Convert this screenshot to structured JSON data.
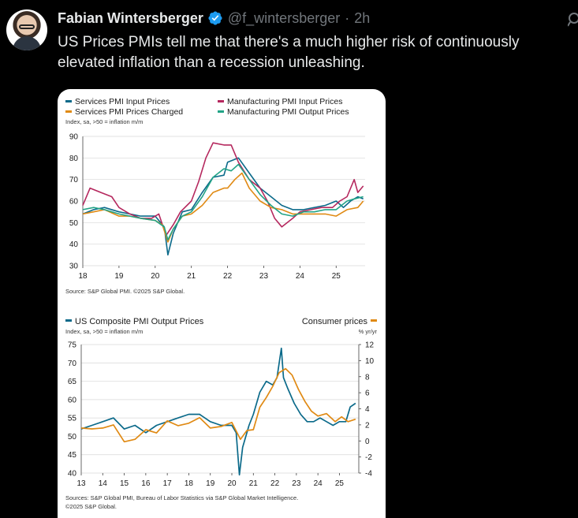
{
  "tweet": {
    "author_name": "Fabian Wintersberger",
    "verified_icon": "verified-badge-icon",
    "handle": "@f_wintersberger",
    "separator": "·",
    "time": "2h",
    "text": "US Prices PMIs tell me that there's a much higher risk of continuously elevated inflation than a recession unleashing.",
    "more_icon": "more-options-icon"
  },
  "colors": {
    "services_input": "#0b6a8a",
    "manufacturing_input": "#b5285e",
    "services_charged": "#e08a14",
    "manufacturing_output": "#22a386",
    "composite": "#0b6a8a",
    "consumer": "#e08a14",
    "verified": "#1d9bf0"
  },
  "chart_data": [
    {
      "type": "line",
      "legend": [
        "Services PMI Input Prices",
        "Manufacturing PMI Input Prices",
        "Services PMI Prices Charged",
        "Manufacturing PMI Output Prices"
      ],
      "subtitle": "Index, sa, >50 = inflation m/m",
      "ylim": [
        30,
        90
      ],
      "y_ticks": [
        "90",
        "80",
        "70",
        "60",
        "50",
        "40",
        "30"
      ],
      "x_ticks": [
        "18",
        "19",
        "20",
        "21",
        "22",
        "23",
        "24",
        "25"
      ],
      "xlim": [
        2018.0,
        2025.8
      ],
      "source": "Source: S&P Global PMI. ©2025 S&P Global.",
      "series": [
        {
          "name": "Services PMI Input Prices",
          "x": [
            2018.0,
            2018.3,
            2018.6,
            2019.0,
            2019.3,
            2019.6,
            2020.0,
            2020.25,
            2020.35,
            2020.5,
            2020.75,
            2021.0,
            2021.3,
            2021.6,
            2021.9,
            2022.0,
            2022.3,
            2022.6,
            2022.9,
            2023.2,
            2023.5,
            2023.8,
            2024.1,
            2024.4,
            2024.7,
            2025.0,
            2025.2,
            2025.4,
            2025.6,
            2025.75
          ],
          "values": [
            54,
            56,
            57,
            55,
            54,
            53,
            53,
            48,
            35,
            45,
            55,
            56,
            64,
            71,
            72,
            78,
            80,
            73,
            66,
            62,
            58,
            56,
            56,
            57,
            58,
            60,
            57,
            60,
            62,
            61
          ]
        },
        {
          "name": "Manufacturing PMI Input Prices",
          "x": [
            2018.0,
            2018.2,
            2018.5,
            2018.8,
            2019.0,
            2019.3,
            2019.6,
            2019.9,
            2020.1,
            2020.3,
            2020.5,
            2020.7,
            2021.0,
            2021.2,
            2021.4,
            2021.6,
            2021.9,
            2022.1,
            2022.3,
            2022.6,
            2022.9,
            2023.1,
            2023.3,
            2023.5,
            2023.8,
            2024.0,
            2024.3,
            2024.6,
            2024.9,
            2025.1,
            2025.3,
            2025.5,
            2025.6,
            2025.75
          ],
          "values": [
            58,
            66,
            64,
            62,
            57,
            54,
            52,
            52,
            54,
            44,
            49,
            55,
            60,
            69,
            80,
            87,
            86,
            86,
            78,
            70,
            66,
            60,
            52,
            48,
            52,
            55,
            56,
            57,
            57,
            60,
            62,
            70,
            64,
            67
          ]
        },
        {
          "name": "Services PMI Prices Charged",
          "x": [
            2018.0,
            2018.3,
            2018.6,
            2019.0,
            2019.3,
            2019.6,
            2020.0,
            2020.2,
            2020.35,
            2020.5,
            2020.75,
            2021.0,
            2021.3,
            2021.6,
            2021.9,
            2022.0,
            2022.2,
            2022.4,
            2022.6,
            2022.9,
            2023.2,
            2023.5,
            2023.8,
            2024.1,
            2024.4,
            2024.7,
            2025.0,
            2025.3,
            2025.6,
            2025.75
          ],
          "values": [
            54,
            55,
            56,
            53,
            53,
            52,
            51,
            49,
            41,
            47,
            53,
            54,
            58,
            64,
            66,
            66,
            70,
            73,
            66,
            60,
            57,
            56,
            54,
            54,
            54,
            54,
            53,
            56,
            57,
            60
          ]
        },
        {
          "name": "Manufacturing PMI Output Prices",
          "x": [
            2018.0,
            2018.3,
            2018.6,
            2019.0,
            2019.3,
            2019.6,
            2020.0,
            2020.25,
            2020.35,
            2020.5,
            2020.75,
            2021.0,
            2021.3,
            2021.6,
            2021.9,
            2022.1,
            2022.3,
            2022.6,
            2022.9,
            2023.2,
            2023.5,
            2023.8,
            2024.1,
            2024.4,
            2024.7,
            2025.0,
            2025.3,
            2025.5,
            2025.75
          ],
          "values": [
            56,
            57,
            56,
            54,
            53,
            52,
            51,
            48,
            42,
            47,
            53,
            55,
            62,
            71,
            75,
            74,
            77,
            70,
            63,
            58,
            54,
            53,
            55,
            55,
            56,
            56,
            60,
            61,
            62
          ]
        }
      ]
    },
    {
      "type": "line",
      "legend_left": "US Composite PMI Output Prices",
      "legend_right": "Consumer prices",
      "subtitle_left": "Index, sa, >50 = inflation m/m",
      "subtitle_right": "% yr/yr",
      "ylim_left": [
        40,
        75
      ],
      "ylim_right": [
        -4,
        12
      ],
      "y_ticks_left": [
        "75",
        "70",
        "65",
        "60",
        "55",
        "50",
        "45",
        "40"
      ],
      "y_ticks_right": [
        "12",
        "10",
        "8",
        "6",
        "4",
        "2",
        "0",
        "-2",
        "-4"
      ],
      "x_ticks": [
        "13",
        "14",
        "15",
        "16",
        "17",
        "18",
        "19",
        "20",
        "21",
        "22",
        "23",
        "24",
        "25"
      ],
      "xlim": [
        2013.0,
        2025.9
      ],
      "source_line1": "Sources: S&P Global PMI, Bureau of Labor Statistics via S&P Global Market Intelligence.",
      "source_line2": "©2025 S&P Global.",
      "series": [
        {
          "name": "US Composite PMI Output Prices",
          "axis": "left",
          "x": [
            2013.0,
            2013.5,
            2014.0,
            2014.5,
            2015.0,
            2015.5,
            2016.0,
            2016.5,
            2017.0,
            2017.5,
            2018.0,
            2018.5,
            2019.0,
            2019.5,
            2020.0,
            2020.2,
            2020.35,
            2020.5,
            2020.8,
            2021.0,
            2021.3,
            2021.6,
            2021.9,
            2022.1,
            2022.3,
            2022.4,
            2022.6,
            2022.9,
            2023.2,
            2023.5,
            2023.8,
            2024.1,
            2024.4,
            2024.7,
            2025.0,
            2025.3,
            2025.5,
            2025.75
          ],
          "values": [
            52,
            53,
            54,
            55,
            52,
            53,
            51,
            53,
            54,
            55,
            56,
            56,
            54,
            53,
            53,
            51,
            39.5,
            47,
            53,
            56,
            62,
            65,
            64,
            66,
            74,
            66,
            63,
            59,
            56,
            54,
            54,
            55,
            54,
            53,
            54,
            54,
            58,
            59
          ]
        },
        {
          "name": "Consumer prices",
          "axis": "right",
          "x": [
            2013.0,
            2013.5,
            2014.0,
            2014.5,
            2015.0,
            2015.5,
            2016.0,
            2016.5,
            2017.0,
            2017.5,
            2018.0,
            2018.5,
            2019.0,
            2019.5,
            2020.0,
            2020.4,
            2020.7,
            2021.0,
            2021.3,
            2021.6,
            2021.9,
            2022.2,
            2022.5,
            2022.8,
            2023.1,
            2023.4,
            2023.7,
            2024.0,
            2024.4,
            2024.8,
            2025.1,
            2025.4,
            2025.75
          ],
          "values": [
            1.6,
            1.5,
            1.6,
            2.0,
            -0.1,
            0.2,
            1.4,
            1.0,
            2.5,
            1.9,
            2.2,
            2.9,
            1.6,
            1.8,
            2.3,
            0.2,
            1.3,
            1.4,
            4.2,
            5.4,
            6.8,
            8.5,
            9.0,
            8.2,
            6.4,
            4.9,
            3.7,
            3.1,
            3.4,
            2.4,
            3.0,
            2.4,
            2.7
          ]
        }
      ]
    }
  ]
}
